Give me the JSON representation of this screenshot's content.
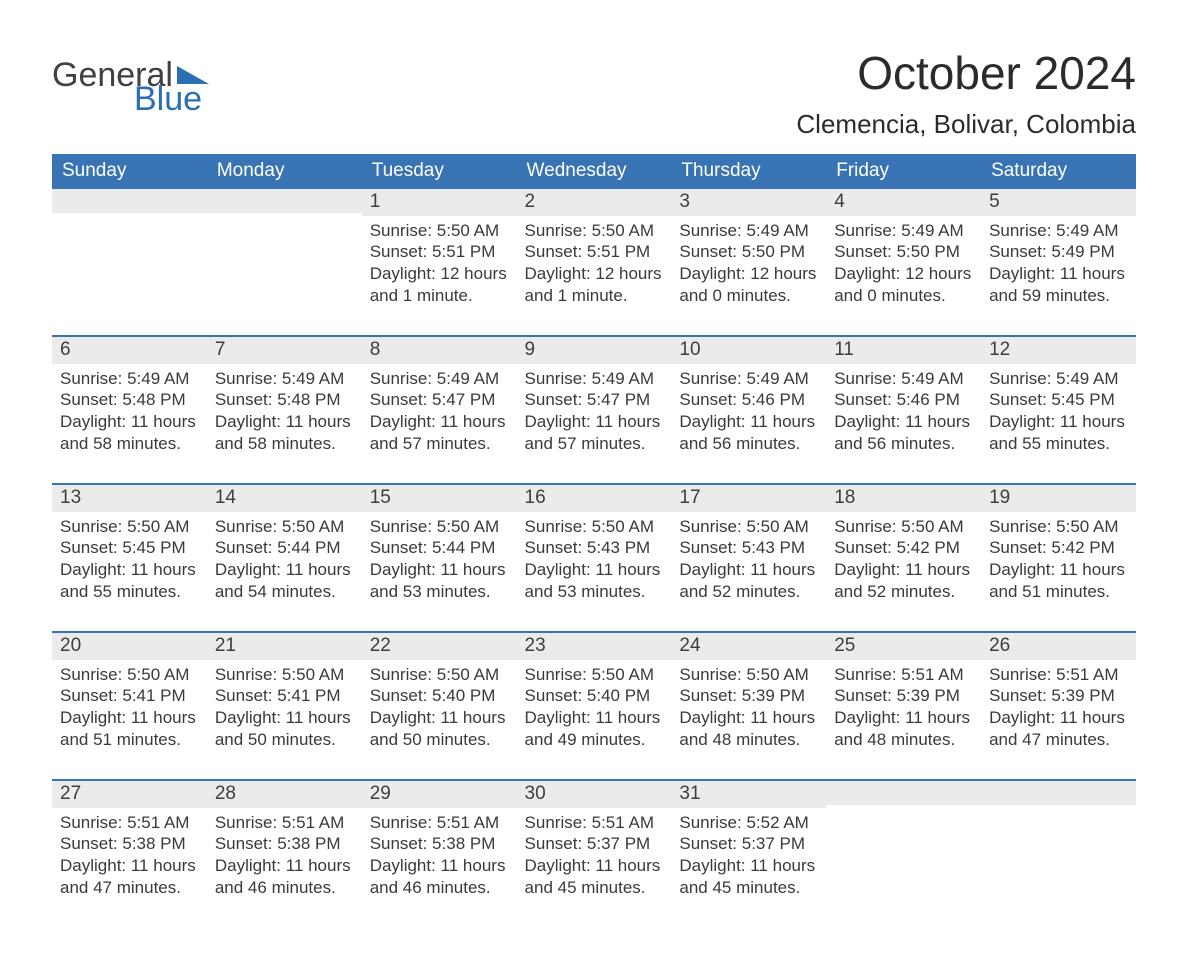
{
  "brand": {
    "part1": "General",
    "part2": "Blue",
    "brand_color": "#2a6fb4",
    "text_color": "#404040"
  },
  "header": {
    "month_title": "October 2024",
    "location": "Clemencia, Bolivar, Colombia"
  },
  "colors": {
    "header_bg": "#3874b3",
    "header_text": "#ffffff",
    "daybar_bg": "#ebebeb",
    "row_border": "#3874b3",
    "body_text": "#3a3a3a"
  },
  "weekdays": [
    "Sunday",
    "Monday",
    "Tuesday",
    "Wednesday",
    "Thursday",
    "Friday",
    "Saturday"
  ],
  "weeks": [
    [
      {
        "num": "",
        "sunrise": "",
        "sunset": "",
        "daylight": ""
      },
      {
        "num": "",
        "sunrise": "",
        "sunset": "",
        "daylight": ""
      },
      {
        "num": "1",
        "sunrise": "Sunrise: 5:50 AM",
        "sunset": "Sunset: 5:51 PM",
        "daylight": "Daylight: 12 hours and 1 minute."
      },
      {
        "num": "2",
        "sunrise": "Sunrise: 5:50 AM",
        "sunset": "Sunset: 5:51 PM",
        "daylight": "Daylight: 12 hours and 1 minute."
      },
      {
        "num": "3",
        "sunrise": "Sunrise: 5:49 AM",
        "sunset": "Sunset: 5:50 PM",
        "daylight": "Daylight: 12 hours and 0 minutes."
      },
      {
        "num": "4",
        "sunrise": "Sunrise: 5:49 AM",
        "sunset": "Sunset: 5:50 PM",
        "daylight": "Daylight: 12 hours and 0 minutes."
      },
      {
        "num": "5",
        "sunrise": "Sunrise: 5:49 AM",
        "sunset": "Sunset: 5:49 PM",
        "daylight": "Daylight: 11 hours and 59 minutes."
      }
    ],
    [
      {
        "num": "6",
        "sunrise": "Sunrise: 5:49 AM",
        "sunset": "Sunset: 5:48 PM",
        "daylight": "Daylight: 11 hours and 58 minutes."
      },
      {
        "num": "7",
        "sunrise": "Sunrise: 5:49 AM",
        "sunset": "Sunset: 5:48 PM",
        "daylight": "Daylight: 11 hours and 58 minutes."
      },
      {
        "num": "8",
        "sunrise": "Sunrise: 5:49 AM",
        "sunset": "Sunset: 5:47 PM",
        "daylight": "Daylight: 11 hours and 57 minutes."
      },
      {
        "num": "9",
        "sunrise": "Sunrise: 5:49 AM",
        "sunset": "Sunset: 5:47 PM",
        "daylight": "Daylight: 11 hours and 57 minutes."
      },
      {
        "num": "10",
        "sunrise": "Sunrise: 5:49 AM",
        "sunset": "Sunset: 5:46 PM",
        "daylight": "Daylight: 11 hours and 56 minutes."
      },
      {
        "num": "11",
        "sunrise": "Sunrise: 5:49 AM",
        "sunset": "Sunset: 5:46 PM",
        "daylight": "Daylight: 11 hours and 56 minutes."
      },
      {
        "num": "12",
        "sunrise": "Sunrise: 5:49 AM",
        "sunset": "Sunset: 5:45 PM",
        "daylight": "Daylight: 11 hours and 55 minutes."
      }
    ],
    [
      {
        "num": "13",
        "sunrise": "Sunrise: 5:50 AM",
        "sunset": "Sunset: 5:45 PM",
        "daylight": "Daylight: 11 hours and 55 minutes."
      },
      {
        "num": "14",
        "sunrise": "Sunrise: 5:50 AM",
        "sunset": "Sunset: 5:44 PM",
        "daylight": "Daylight: 11 hours and 54 minutes."
      },
      {
        "num": "15",
        "sunrise": "Sunrise: 5:50 AM",
        "sunset": "Sunset: 5:44 PM",
        "daylight": "Daylight: 11 hours and 53 minutes."
      },
      {
        "num": "16",
        "sunrise": "Sunrise: 5:50 AM",
        "sunset": "Sunset: 5:43 PM",
        "daylight": "Daylight: 11 hours and 53 minutes."
      },
      {
        "num": "17",
        "sunrise": "Sunrise: 5:50 AM",
        "sunset": "Sunset: 5:43 PM",
        "daylight": "Daylight: 11 hours and 52 minutes."
      },
      {
        "num": "18",
        "sunrise": "Sunrise: 5:50 AM",
        "sunset": "Sunset: 5:42 PM",
        "daylight": "Daylight: 11 hours and 52 minutes."
      },
      {
        "num": "19",
        "sunrise": "Sunrise: 5:50 AM",
        "sunset": "Sunset: 5:42 PM",
        "daylight": "Daylight: 11 hours and 51 minutes."
      }
    ],
    [
      {
        "num": "20",
        "sunrise": "Sunrise: 5:50 AM",
        "sunset": "Sunset: 5:41 PM",
        "daylight": "Daylight: 11 hours and 51 minutes."
      },
      {
        "num": "21",
        "sunrise": "Sunrise: 5:50 AM",
        "sunset": "Sunset: 5:41 PM",
        "daylight": "Daylight: 11 hours and 50 minutes."
      },
      {
        "num": "22",
        "sunrise": "Sunrise: 5:50 AM",
        "sunset": "Sunset: 5:40 PM",
        "daylight": "Daylight: 11 hours and 50 minutes."
      },
      {
        "num": "23",
        "sunrise": "Sunrise: 5:50 AM",
        "sunset": "Sunset: 5:40 PM",
        "daylight": "Daylight: 11 hours and 49 minutes."
      },
      {
        "num": "24",
        "sunrise": "Sunrise: 5:50 AM",
        "sunset": "Sunset: 5:39 PM",
        "daylight": "Daylight: 11 hours and 48 minutes."
      },
      {
        "num": "25",
        "sunrise": "Sunrise: 5:51 AM",
        "sunset": "Sunset: 5:39 PM",
        "daylight": "Daylight: 11 hours and 48 minutes."
      },
      {
        "num": "26",
        "sunrise": "Sunrise: 5:51 AM",
        "sunset": "Sunset: 5:39 PM",
        "daylight": "Daylight: 11 hours and 47 minutes."
      }
    ],
    [
      {
        "num": "27",
        "sunrise": "Sunrise: 5:51 AM",
        "sunset": "Sunset: 5:38 PM",
        "daylight": "Daylight: 11 hours and 47 minutes."
      },
      {
        "num": "28",
        "sunrise": "Sunrise: 5:51 AM",
        "sunset": "Sunset: 5:38 PM",
        "daylight": "Daylight: 11 hours and 46 minutes."
      },
      {
        "num": "29",
        "sunrise": "Sunrise: 5:51 AM",
        "sunset": "Sunset: 5:38 PM",
        "daylight": "Daylight: 11 hours and 46 minutes."
      },
      {
        "num": "30",
        "sunrise": "Sunrise: 5:51 AM",
        "sunset": "Sunset: 5:37 PM",
        "daylight": "Daylight: 11 hours and 45 minutes."
      },
      {
        "num": "31",
        "sunrise": "Sunrise: 5:52 AM",
        "sunset": "Sunset: 5:37 PM",
        "daylight": "Daylight: 11 hours and 45 minutes."
      },
      {
        "num": "",
        "sunrise": "",
        "sunset": "",
        "daylight": ""
      },
      {
        "num": "",
        "sunrise": "",
        "sunset": "",
        "daylight": ""
      }
    ]
  ]
}
